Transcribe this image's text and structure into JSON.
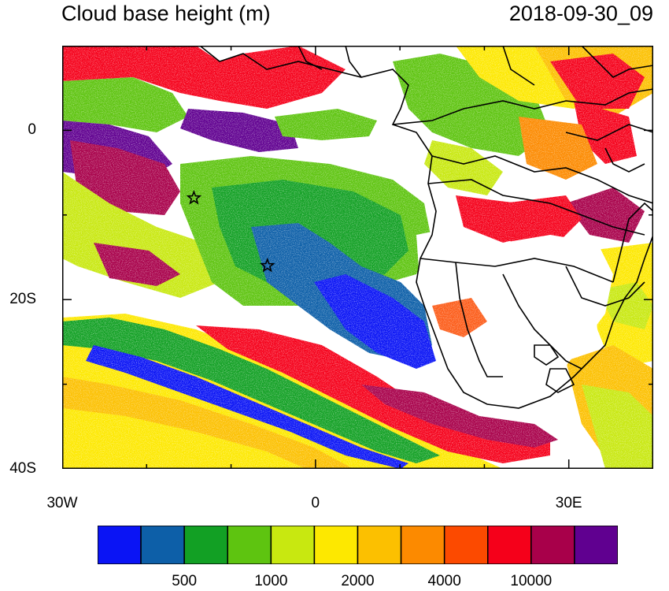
{
  "title": {
    "left": "Cloud base height (m)",
    "right": "2018-09-30_09"
  },
  "axes": {
    "x_ticks": [
      {
        "label": "30W",
        "lon": -30
      },
      {
        "label": "0",
        "lon": 0
      },
      {
        "label": "30E",
        "lon": 30
      }
    ],
    "y_ticks": [
      {
        "label": "0",
        "lat": 0
      },
      {
        "label": "20S",
        "lat": -20
      },
      {
        "label": "40S",
        "lat": -40
      }
    ],
    "lon_range": [
      -30,
      40
    ],
    "lat_range": [
      -40,
      10
    ]
  },
  "colorbar": {
    "colors": [
      "#0a14f5",
      "#0d5fa8",
      "#12a024",
      "#5ec410",
      "#c8e810",
      "#fde800",
      "#fcc000",
      "#fc8a00",
      "#fc4a00",
      "#f5001a",
      "#a8004a",
      "#600090"
    ],
    "labels": [
      {
        "text": "500",
        "boundary": 2
      },
      {
        "text": "1000",
        "boundary": 4
      },
      {
        "text": "2000",
        "boundary": 6
      },
      {
        "text": "4000",
        "boundary": 8
      },
      {
        "text": "10000",
        "boundary": 10
      }
    ]
  },
  "markers": {
    "star_icon": "star-icon",
    "stars": [
      {
        "lon": -14.4,
        "lat": -8.0
      },
      {
        "lon": -5.7,
        "lat": -16.0
      }
    ]
  }
}
